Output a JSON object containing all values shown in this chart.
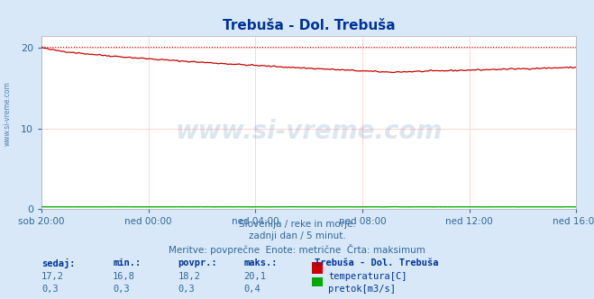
{
  "title": "Trebuša - Dol. Trebuša",
  "bg_color": "#d8e8f8",
  "plot_bg_color": "#ffffff",
  "grid_color": "#ffcccc",
  "x_labels": [
    "sob 20:00",
    "ned 00:00",
    "ned 04:00",
    "ned 08:00",
    "ned 12:00",
    "ned 16:00"
  ],
  "y_ticks": [
    0,
    10,
    20
  ],
  "ylim": [
    0,
    21.5
  ],
  "xlim": [
    0,
    287
  ],
  "temp_max_line": 20.1,
  "temp_color": "#cc0000",
  "flow_color": "#00aa00",
  "flow_max_line": 0.4,
  "subtitle1": "Slovenija / reke in morje.",
  "subtitle2": "zadnji dan / 5 minut.",
  "subtitle3": "Meritve: povprečne  Enote: metrične  Črta: maksimum",
  "table_headers": [
    "sedaj:",
    "min.:",
    "povpr.:",
    "maks.:"
  ],
  "table_temp": [
    "17,2",
    "16,8",
    "18,2",
    "20,1"
  ],
  "table_flow": [
    "0,3",
    "0,3",
    "0,3",
    "0,4"
  ],
  "legend_title": "Trebuša - Dol. Trebuša",
  "legend_temp": "temperatura[C]",
  "legend_flow": "pretok[m3/s]",
  "watermark": "www.si-vreme.com",
  "left_label": "www.si-vreme.com",
  "title_color": "#003399",
  "text_color": "#336699",
  "table_header_color": "#003399",
  "dpi": 100,
  "fig_width": 6.59,
  "fig_height": 3.32
}
